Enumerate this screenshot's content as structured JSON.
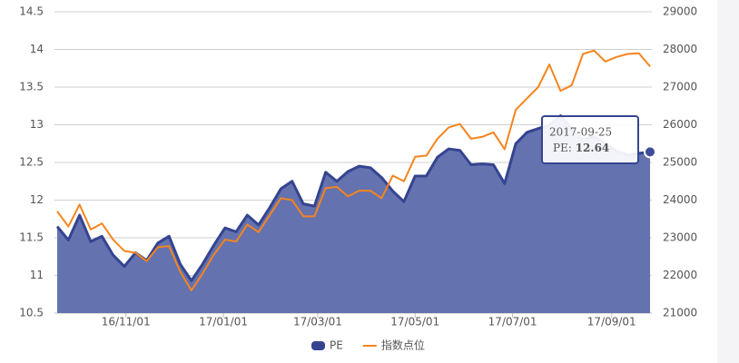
{
  "chart_data": {
    "type": "line",
    "x": [
      "2016-09-19",
      "2016-09-26",
      "2016-10-03",
      "2016-10-10",
      "2016-10-17",
      "2016-10-24",
      "2016-10-31",
      "2016-11-07",
      "2016-11-14",
      "2016-11-21",
      "2016-11-28",
      "2016-12-05",
      "2016-12-12",
      "2016-12-19",
      "2016-12-26",
      "2017-01-02",
      "2017-01-09",
      "2017-01-16",
      "2017-01-23",
      "2017-01-30",
      "2017-02-06",
      "2017-02-13",
      "2017-02-20",
      "2017-02-27",
      "2017-03-06",
      "2017-03-13",
      "2017-03-20",
      "2017-03-27",
      "2017-04-03",
      "2017-04-10",
      "2017-04-17",
      "2017-04-24",
      "2017-05-01",
      "2017-05-08",
      "2017-05-15",
      "2017-05-22",
      "2017-05-29",
      "2017-06-05",
      "2017-06-12",
      "2017-06-19",
      "2017-06-26",
      "2017-07-03",
      "2017-07-10",
      "2017-07-17",
      "2017-07-24",
      "2017-07-31",
      "2017-08-07",
      "2017-08-14",
      "2017-08-21",
      "2017-08-28",
      "2017-09-04",
      "2017-09-11",
      "2017-09-18",
      "2017-09-25"
    ],
    "series": [
      {
        "name": "PE",
        "kind": "area",
        "color": "#34448f",
        "fill": "#6472b0",
        "axis": "y",
        "values": [
          11.65,
          11.47,
          11.8,
          11.45,
          11.52,
          11.27,
          11.12,
          11.3,
          11.2,
          11.43,
          11.52,
          11.15,
          10.93,
          11.15,
          11.4,
          11.63,
          11.58,
          11.8,
          11.67,
          11.9,
          12.15,
          12.25,
          11.95,
          11.92,
          12.37,
          12.25,
          12.38,
          12.45,
          12.43,
          12.3,
          12.12,
          11.98,
          12.32,
          12.32,
          12.57,
          12.68,
          12.66,
          12.47,
          12.48,
          12.47,
          12.22,
          12.75,
          12.9,
          12.95,
          13.0,
          13.12,
          12.95,
          12.8,
          12.85,
          12.75,
          12.65,
          12.6,
          12.62,
          12.64
        ]
      },
      {
        "name": "指数点位",
        "kind": "line",
        "color": "#f5841f",
        "axis": "y2",
        "values": [
          23700,
          23300,
          23880,
          23220,
          23380,
          22950,
          22650,
          22600,
          22380,
          22750,
          22780,
          22100,
          21600,
          22050,
          22550,
          22950,
          22900,
          23350,
          23150,
          23600,
          24050,
          24000,
          23570,
          23570,
          24320,
          24350,
          24100,
          24250,
          24250,
          24050,
          24650,
          24500,
          25150,
          25180,
          25630,
          25930,
          26020,
          25630,
          25680,
          25800,
          25350,
          26400,
          26700,
          27000,
          27600,
          26900,
          27050,
          27880,
          27970,
          27680,
          27800,
          27880,
          27900,
          27550
        ]
      }
    ],
    "xlim": [
      "2016-09-19",
      "2017-09-25"
    ],
    "xticks": [
      {
        "value": "2016-11-01",
        "label": "16/11/01"
      },
      {
        "value": "2017-01-01",
        "label": "17/01/01"
      },
      {
        "value": "2017-03-01",
        "label": "17/03/01"
      },
      {
        "value": "2017-05-01",
        "label": "17/05/01"
      },
      {
        "value": "2017-07-01",
        "label": "17/07/01"
      },
      {
        "value": "2017-09-01",
        "label": "17/09/01"
      }
    ],
    "ylim": [
      10.5,
      14.5
    ],
    "yticks": [
      10.5,
      11,
      11.5,
      12,
      12.5,
      13,
      13.5,
      14,
      14.5
    ],
    "y2lim": [
      21000,
      29000
    ],
    "y2ticks": [
      21000,
      22000,
      23000,
      24000,
      25000,
      26000,
      27000,
      28000,
      29000
    ],
    "grid": true,
    "legend": "bottom",
    "tooltip": {
      "index": 53
    }
  }
}
